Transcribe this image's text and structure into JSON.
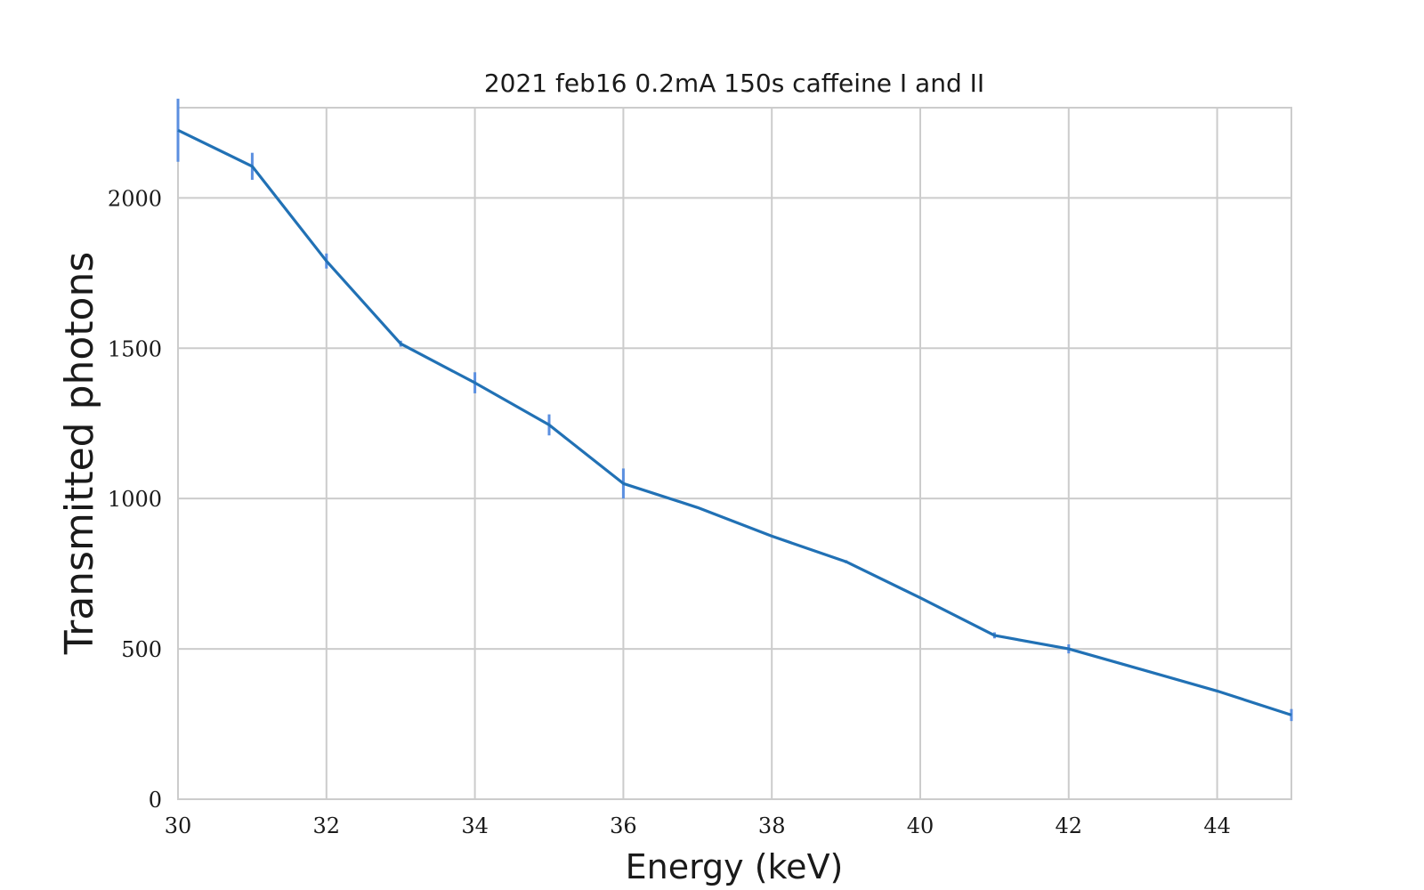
{
  "chart_data": {
    "type": "line",
    "title": "2021 feb16 0.2mA 150s caffeine I and II",
    "xlabel": "Energy (keV)",
    "ylabel": "Transmitted photons",
    "xlim": [
      30,
      45
    ],
    "ylim": [
      0,
      2300
    ],
    "xticks": [
      30,
      32,
      34,
      36,
      38,
      40,
      42,
      44
    ],
    "yticks": [
      0,
      500,
      1000,
      1500,
      2000
    ],
    "grid": true,
    "line_color": "#2171b5",
    "errorbar_color": "#5b8fe0",
    "series": [
      {
        "x": [
          30,
          31,
          32,
          33,
          34,
          35,
          36,
          37,
          38,
          39,
          40,
          41,
          42,
          43,
          44,
          45
        ],
        "y": [
          2225,
          2105,
          1790,
          1515,
          1385,
          1245,
          1050,
          970,
          875,
          790,
          670,
          545,
          500,
          430,
          360,
          280
        ],
        "yerr": [
          105,
          45,
          25,
          10,
          35,
          35,
          50,
          3,
          3,
          5,
          3,
          10,
          15,
          3,
          3,
          20
        ]
      }
    ]
  }
}
